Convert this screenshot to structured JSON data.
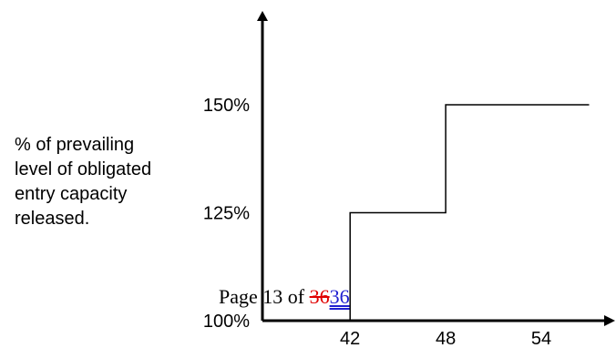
{
  "chart_data": {
    "type": "line",
    "step": true,
    "ylabel_lines": [
      "% of prevailing",
      "level of obligated",
      "entry capacity",
      "released."
    ],
    "x_ticks": [
      "42",
      "48",
      "54"
    ],
    "y_ticks": [
      "100%",
      "125%",
      "150%"
    ],
    "series": [
      {
        "points": [
          {
            "x": 42,
            "y": 100
          },
          {
            "x": 42,
            "y": 125
          },
          {
            "x": 48,
            "y": 125
          },
          {
            "x": 48,
            "y": 150
          },
          {
            "x": 57,
            "y": 150
          }
        ]
      }
    ],
    "xlim": [
      36.5,
      58
    ],
    "ylim": [
      100,
      150
    ],
    "grid": false,
    "line_color": "#000000"
  },
  "footer": {
    "prefix": "Page 13 of ",
    "deleted": "36",
    "inserted": "36"
  }
}
